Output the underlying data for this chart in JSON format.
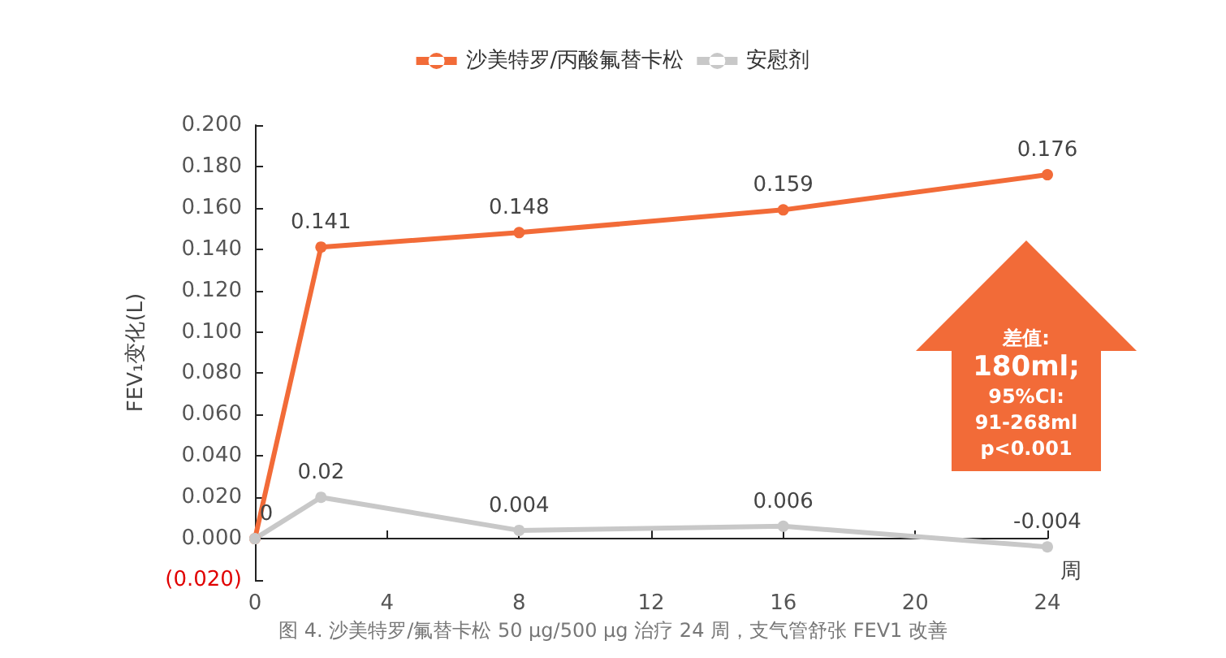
{
  "chart_data": {
    "type": "line",
    "xlabel": "周",
    "ylabel": "FEV₁变化(L)",
    "x": [
      0,
      2,
      8,
      16,
      24
    ],
    "series": [
      {
        "name": "沙美特罗/丙酸氟替卡松",
        "color": "#f26b38",
        "values": [
          0,
          0.141,
          0.148,
          0.159,
          0.176
        ],
        "value_labels": [
          null,
          "0.141",
          "0.148",
          "0.159",
          "0.176"
        ]
      },
      {
        "name": "安慰剂",
        "color": "#c8c8c8",
        "values": [
          0,
          0.02,
          0.004,
          0.006,
          -0.004
        ],
        "value_labels": [
          "0",
          "0.02",
          "0.004",
          "0.006",
          "-0.004"
        ]
      }
    ],
    "xlim": [
      0,
      24
    ],
    "xticks": [
      0,
      4,
      8,
      12,
      16,
      20,
      24
    ],
    "ylim": [
      -0.02,
      0.2
    ],
    "yticks": [
      {
        "value": -0.02,
        "label": "(0.020)"
      },
      {
        "value": 0,
        "label": "0.000"
      },
      {
        "value": 0.02,
        "label": "0.020"
      },
      {
        "value": 0.04,
        "label": "0.040"
      },
      {
        "value": 0.06,
        "label": "0.060"
      },
      {
        "value": 0.08,
        "label": "0.080"
      },
      {
        "value": 0.1,
        "label": "0.100"
      },
      {
        "value": 0.12,
        "label": "0.120"
      },
      {
        "value": 0.14,
        "label": "0.140"
      },
      {
        "value": 0.16,
        "label": "0.160"
      },
      {
        "value": 0.18,
        "label": "0.180"
      },
      {
        "value": 0.2,
        "label": "0.200"
      }
    ],
    "grid": false,
    "legend": "top",
    "marker": "circle",
    "line_style": "solid",
    "annotations": [
      "差值:",
      "180ml;",
      "95%CI:",
      "91-268ml",
      "p<0.001",
      "图 4. 沙美特罗/氟替卡松 50 μg/500 μg 治疗 24 周，支气管舒张 FEV1 改善"
    ]
  }
}
